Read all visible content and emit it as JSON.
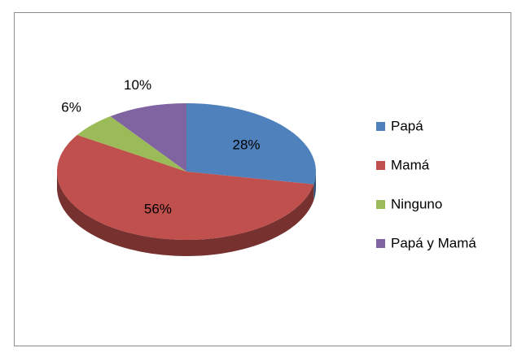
{
  "chart_data": {
    "type": "pie",
    "categories": [
      "Papá",
      "Mamá",
      "Ninguno",
      "Papá y Mamá"
    ],
    "values": [
      28,
      56,
      6,
      10
    ],
    "value_labels": [
      "28%",
      "56%",
      "6%",
      "10%"
    ],
    "colors": [
      "#4f81bd",
      "#c0504d",
      "#9bbb59",
      "#8064a2"
    ],
    "legend": "right"
  }
}
